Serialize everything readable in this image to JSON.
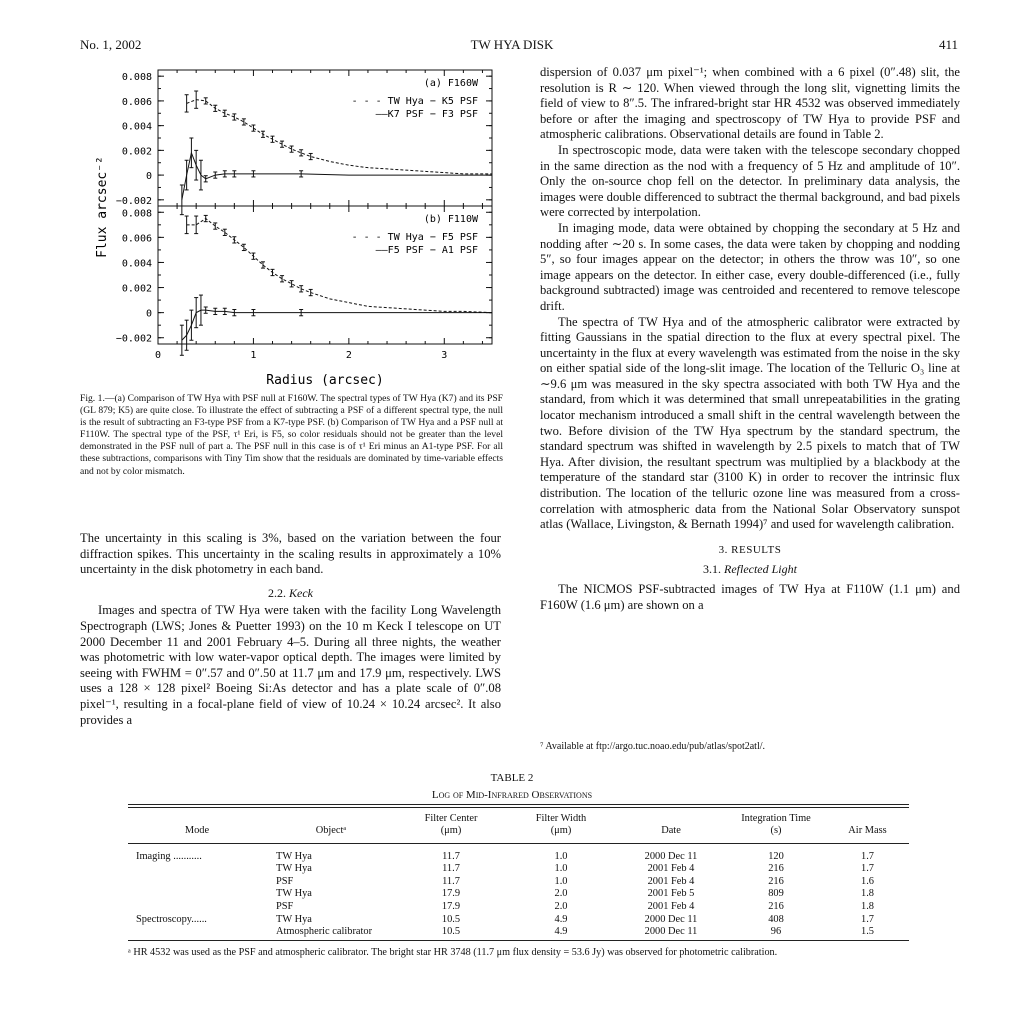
{
  "header": {
    "left": "No. 1, 2002",
    "center": "TW HYA DISK",
    "right": "411"
  },
  "chart_data": [
    {
      "type": "line",
      "panel_label": "(a) F160W",
      "ylabel": "Flux arcsec⁻²",
      "yticks": [
        "0.008",
        "0.006",
        "0.004",
        "0.002",
        "0",
        "−0.002"
      ],
      "ylim": [
        -0.0025,
        0.0085
      ],
      "xlim": [
        0,
        3.5
      ],
      "legend": [
        "- - - TW Hya  −  K5 PSF",
        "——K7 PSF  −  F3 PSF"
      ],
      "series": [
        {
          "name": "TW Hya − K5 PSF",
          "style": "dashed",
          "x": [
            0.3,
            0.4,
            0.5,
            0.6,
            0.7,
            0.8,
            0.9,
            1.0,
            1.1,
            1.2,
            1.3,
            1.4,
            1.5,
            1.6,
            1.8,
            2.0,
            2.2,
            2.4,
            2.6,
            2.8,
            3.0,
            3.2,
            3.5
          ],
          "y": [
            0.0058,
            0.0061,
            0.006,
            0.0054,
            0.005,
            0.0047,
            0.0043,
            0.0038,
            0.0033,
            0.0029,
            0.0025,
            0.0021,
            0.0018,
            0.0015,
            0.0011,
            0.0008,
            0.0006,
            0.0005,
            0.0004,
            0.0003,
            0.0002,
            0.0001,
            0.0001
          ]
        },
        {
          "name": "K7 PSF − F3 PSF",
          "style": "solid",
          "x": [
            0.25,
            0.3,
            0.35,
            0.4,
            0.45,
            0.5,
            0.6,
            0.7,
            0.8,
            1.0,
            1.5,
            2.0,
            3.5
          ],
          "y": [
            -0.002,
            0.0,
            0.0018,
            0.0008,
            0.0,
            -0.0003,
            0.0,
            0.0001,
            0.0001,
            0.0001,
            0.0001,
            0.0,
            0.0
          ]
        }
      ]
    },
    {
      "type": "line",
      "panel_label": "(b) F110W",
      "ylim": [
        -0.0025,
        0.0085
      ],
      "xlim": [
        0,
        3.5
      ],
      "yticks": [
        "0.008",
        "0.006",
        "0.004",
        "0.002",
        "0",
        "−0.002"
      ],
      "xticks": [
        "0",
        "1",
        "2",
        "3"
      ],
      "xlabel": "Radius (arcsec)",
      "legend": [
        "- - - TW Hya  −  F5 PSF",
        "——F5 PSF  −  A1 PSF"
      ],
      "series": [
        {
          "name": "TW Hya − F5 PSF",
          "style": "dashed",
          "x": [
            0.3,
            0.4,
            0.5,
            0.6,
            0.7,
            0.8,
            0.9,
            1.0,
            1.1,
            1.2,
            1.3,
            1.4,
            1.5,
            1.6,
            1.8,
            2.0,
            2.2,
            2.4,
            2.6,
            2.8,
            3.0,
            3.2,
            3.5
          ],
          "y": [
            0.007,
            0.007,
            0.0075,
            0.0069,
            0.0064,
            0.0058,
            0.0052,
            0.0045,
            0.0038,
            0.0032,
            0.0027,
            0.0023,
            0.0019,
            0.0016,
            0.0011,
            0.0008,
            0.0005,
            0.0004,
            0.0003,
            0.0002,
            0.0001,
            0.0001,
            0.0
          ]
        },
        {
          "name": "F5 PSF − A1 PSF",
          "style": "solid",
          "x": [
            0.25,
            0.3,
            0.35,
            0.4,
            0.45,
            0.5,
            0.6,
            0.7,
            0.8,
            1.0,
            1.5,
            2.0,
            3.5
          ],
          "y": [
            -0.0022,
            -0.0018,
            -0.001,
            0.0,
            0.0002,
            0.0002,
            0.0001,
            0.0001,
            0.0,
            0.0,
            0.0,
            0.0,
            0.0
          ]
        }
      ]
    }
  ],
  "caption": "Fig. 1.—(a) Comparison of TW Hya with PSF null at F160W. The spectral types of TW Hya (K7) and its PSF (GL 879; K5) are quite close. To illustrate the effect of subtracting a PSF of a different spectral type, the null is the result of subtracting an F3-type PSF from a K7-type PSF. (b) Comparison of TW Hya and a PSF null at F110W. The spectral type of the PSF, τ¹ Eri, is F5, so color residuals should not be greater than the level demonstrated in the PSF null of part a. The PSF null in this case is of τ¹ Eri minus an A1-type PSF. For all these subtractions, comparisons with Tiny Tim show that the residuals are dominated by time-variable effects and not by color mismatch.",
  "left": {
    "p1": "The uncertainty in this scaling is 3%, based on the variation between the four diffraction spikes. This uncertainty in the scaling results in approximately a 10% uncertainty in the disk photometry in each band.",
    "sec_num": "2.2.",
    "sec_title": "Keck",
    "p2": "Images and spectra of TW Hya were taken with the facility Long Wavelength Spectrograph (LWS; Jones & Puetter 1993) on the 10 m Keck I telescope on UT 2000 December 11 and 2001 February 4–5. During all three nights, the weather was photometric with low water-vapor optical depth. The images were limited by seeing with FWHM = 0″.57 and 0″.50 at 11.7 μm and 17.9 μm, respectively. LWS uses a 128 × 128 pixel² Boeing Si:As detector and has a plate scale of 0″.08 pixel⁻¹, resulting in a focal-plane field of view of 10.24 × 10.24 arcsec². It also provides a"
  },
  "right": {
    "p1": "dispersion of 0.037 μm pixel⁻¹; when combined with a 6 pixel (0″.48) slit, the resolution is R ∼ 120. When viewed through the long slit, vignetting limits the field of view to 8″.5. The infrared-bright star HR 4532 was observed immediately before or after the imaging and spectroscopy of TW Hya to provide PSF and atmospheric calibrations. Observational details are found in Table 2.",
    "p2": "In spectroscopic mode, data were taken with the telescope secondary chopped in the same direction as the nod with a frequency of 5 Hz and amplitude of 10″. Only the on-source chop fell on the detector. In preliminary data analysis, the images were double differenced to subtract the thermal background, and bad pixels were corrected by interpolation.",
    "p3": "In imaging mode, data were obtained by chopping the secondary at 5 Hz and nodding after ∼20 s. In some cases, the data were taken by chopping and nodding 5″, so four images appear on the detector; in others the throw was 10″, so one image appears on the detector. In either case, every double-differenced (i.e., fully background subtracted) image was centroided and recentered to remove telescope drift.",
    "p4": "The spectra of TW Hya and of the atmospheric calibrator were extracted by fitting Gaussians in the spatial direction to the flux at every spectral pixel. The uncertainty in the flux at every wavelength was estimated from the noise in the sky on either spatial side of the long-slit image. The location of the Telluric O₃ line at ∼9.6 μm was measured in the sky spectra associated with both TW Hya and the standard, from which it was determined that small unrepeatabilities in the grating locator mechanism introduced a small shift in the central wavelength between the two. Before division of the TW Hya spectrum by the standard spectrum, the standard spectrum was shifted in wavelength by 2.5 pixels to match that of TW Hya. After division, the resultant spectrum was multiplied by a blackbody at the temperature of the standard star (3100 K) in order to recover the intrinsic flux distribution. The location of the telluric ozone line was measured from a cross-correlation with atmospheric data from the National Solar Observatory sunspot atlas (Wallace, Livingston, & Bernath 1994)⁷ and used for wavelength calibration.",
    "sec3": "3. RESULTS",
    "sec31_num": "3.1.",
    "sec31_title": "Reflected Light",
    "p5": "The NICMOS PSF-subtracted images of TW Hya at F110W (1.1 μm) and F160W (1.6 μm) are shown on a",
    "footnote": "⁷ Available at ftp://argo.tuc.noao.edu/pub/atlas/spot2atl/."
  },
  "table": {
    "label": "TABLE 2",
    "title": "Log of Mid-Infrared Observations",
    "headers": {
      "mode": "Mode",
      "object": "Objectᵃ",
      "filter_center": "Filter Center",
      "filter_center_unit": "(μm)",
      "filter_width": "Filter Width",
      "filter_width_unit": "(μm)",
      "date": "Date",
      "integration": "Integration Time",
      "integration_unit": "(s)",
      "airmass": "Air Mass"
    },
    "rows": [
      [
        "Imaging ...........",
        "TW Hya",
        "11.7",
        "1.0",
        "2000 Dec 11",
        "120",
        "1.7"
      ],
      [
        "",
        "TW Hya",
        "11.7",
        "1.0",
        "2001 Feb 4",
        "216",
        "1.7"
      ],
      [
        "",
        "PSF",
        "11.7",
        "1.0",
        "2001 Feb 4",
        "216",
        "1.6"
      ],
      [
        "",
        "TW Hya",
        "17.9",
        "2.0",
        "2001 Feb 5",
        "809",
        "1.8"
      ],
      [
        "",
        "PSF",
        "17.9",
        "2.0",
        "2001 Feb 4",
        "216",
        "1.8"
      ],
      [
        "Spectroscopy......",
        "TW Hya",
        "10.5",
        "4.9",
        "2000 Dec 11",
        "408",
        "1.7"
      ],
      [
        "",
        "Atmospheric calibrator",
        "10.5",
        "4.9",
        "2000 Dec 11",
        "96",
        "1.5"
      ]
    ],
    "note": "ᵃ HR 4532 was used as the PSF and atmospheric calibrator. The bright star HR 3748 (11.7 μm flux density = 53.6 Jy) was observed for photometric calibration."
  }
}
